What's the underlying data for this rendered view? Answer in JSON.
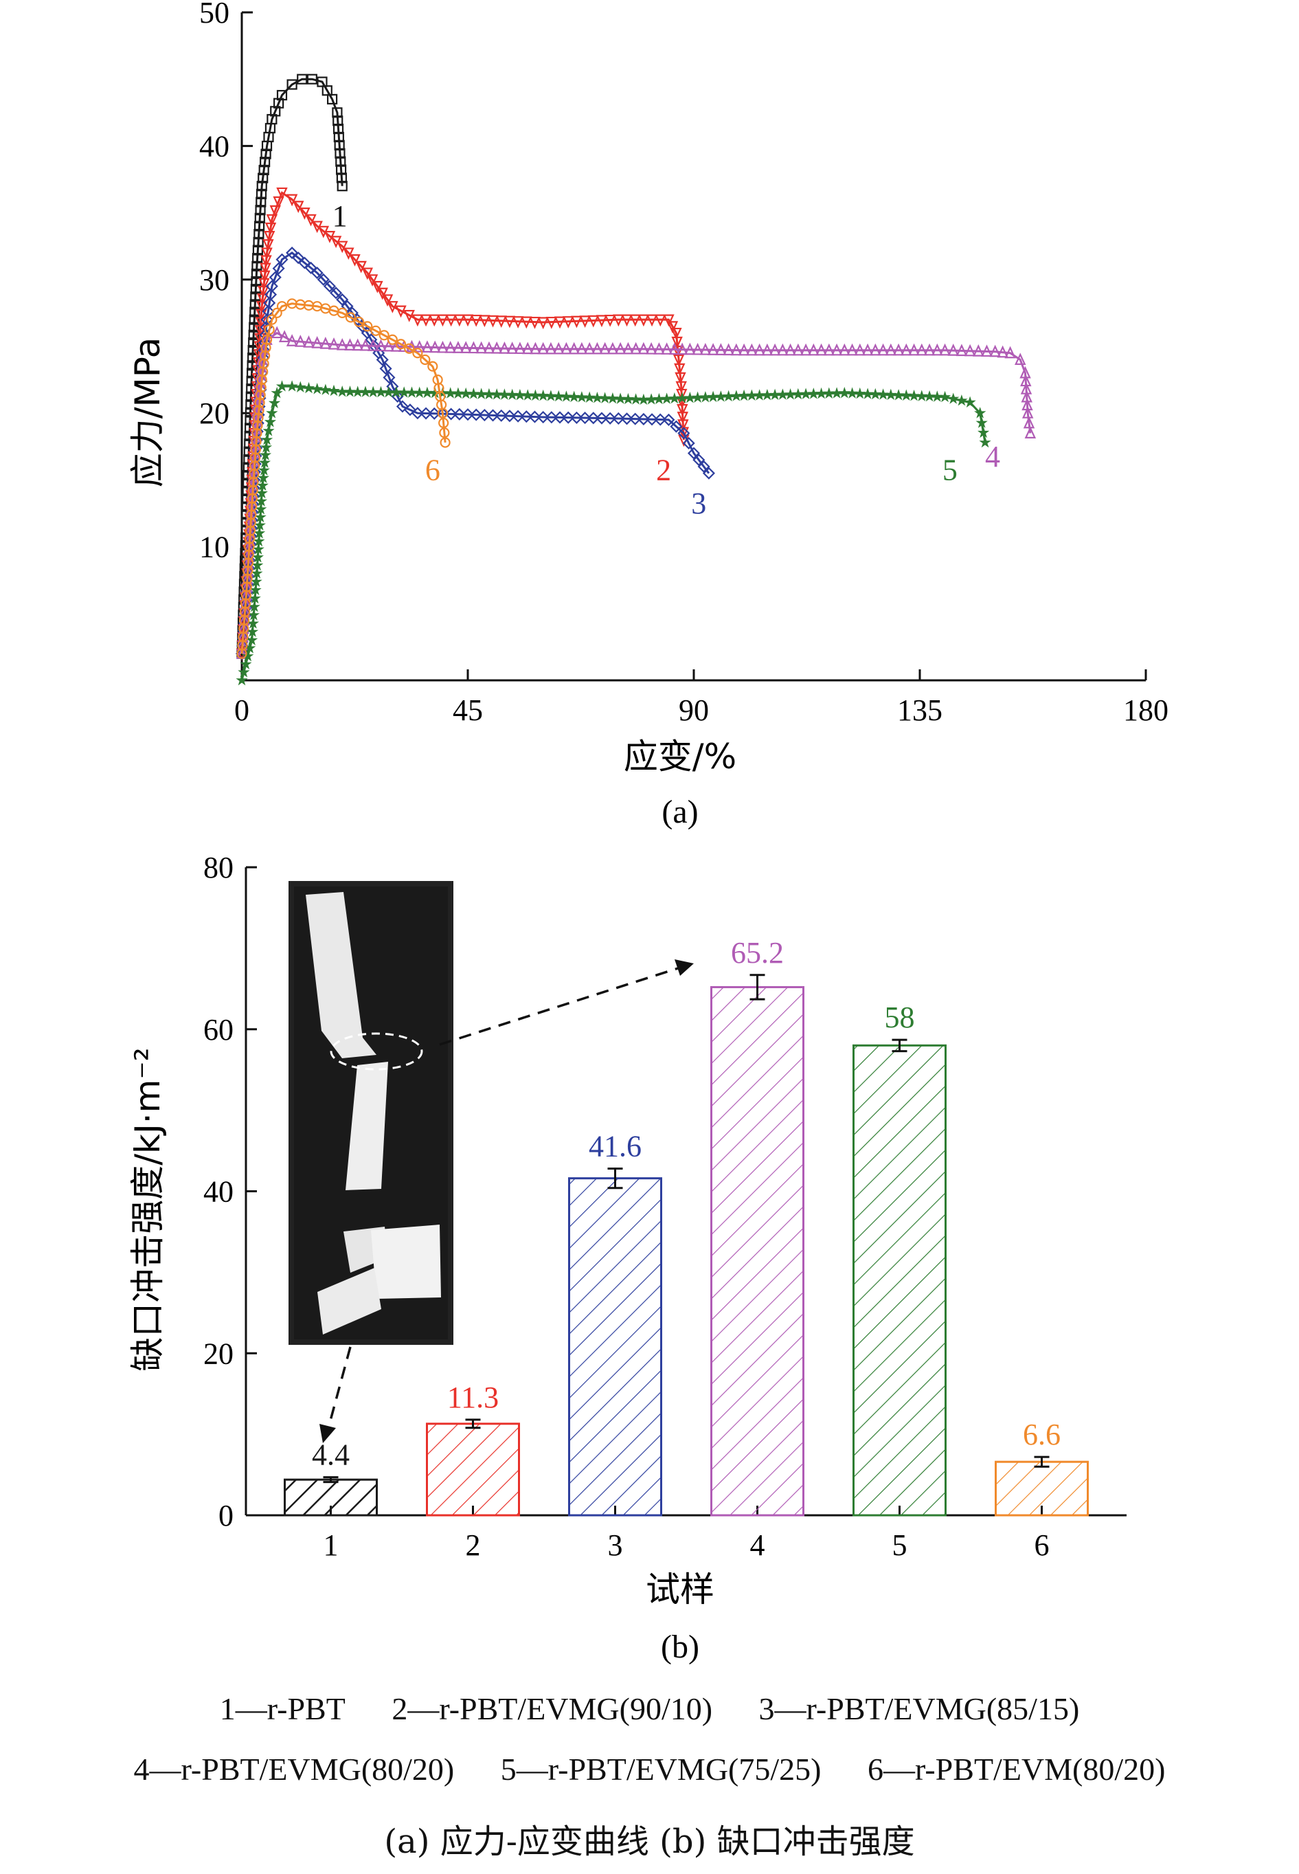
{
  "chart_data": [
    {
      "type": "line",
      "panel_label": "(a)",
      "xlabel": "应变/%",
      "ylabel": "应力/MPa",
      "xlim": [
        0,
        180
      ],
      "ylim": [
        0,
        50
      ],
      "xticks": [
        0,
        45,
        90,
        135,
        180
      ],
      "yticks": [
        10,
        20,
        30,
        40,
        50
      ],
      "series": [
        {
          "name": "1",
          "color": "#1a1a1a",
          "marker": "square",
          "x": [
            0,
            1,
            2,
            3,
            4,
            5,
            6,
            8,
            10,
            12,
            14,
            16,
            18,
            19,
            20
          ],
          "y": [
            2,
            13,
            23,
            31,
            37,
            40,
            42,
            43.8,
            44.6,
            45,
            45,
            44.8,
            43.5,
            42.5,
            37
          ]
        },
        {
          "name": "2",
          "color": "#e8312a",
          "marker": "triangle-down",
          "x": [
            0,
            1,
            2,
            3,
            4,
            5,
            6,
            8,
            10,
            15,
            20,
            25,
            30,
            35,
            45,
            60,
            75,
            85,
            86.5,
            87,
            87.5,
            88
          ],
          "y": [
            2,
            8,
            15,
            22,
            28,
            32,
            34.5,
            36.5,
            36,
            34,
            32.5,
            30.5,
            28,
            27,
            27,
            26.8,
            27,
            27,
            26,
            24,
            22,
            18
          ]
        },
        {
          "name": "3",
          "color": "#2e3f9e",
          "marker": "diamond",
          "x": [
            0,
            1,
            2,
            3,
            4,
            5,
            6,
            8,
            10,
            15,
            20,
            25,
            28,
            30,
            32,
            35,
            45,
            60,
            75,
            85,
            88,
            90,
            92,
            93
          ],
          "y": [
            2,
            6,
            12,
            18,
            23,
            27,
            29.5,
            31.5,
            32,
            30.5,
            28.5,
            26,
            24,
            22,
            20.5,
            20,
            19.9,
            19.7,
            19.6,
            19.5,
            18.5,
            17,
            16,
            15.5
          ]
        },
        {
          "name": "4",
          "color": "#b05cb5",
          "marker": "triangle-up",
          "x": [
            0,
            1,
            2,
            3,
            4,
            5,
            7,
            10,
            20,
            40,
            60,
            80,
            100,
            120,
            140,
            150,
            153,
            155,
            156,
            156.5,
            157
          ],
          "y": [
            2,
            7,
            14,
            20,
            24,
            25.5,
            26,
            25.4,
            25.1,
            24.9,
            24.8,
            24.8,
            24.7,
            24.7,
            24.7,
            24.6,
            24.5,
            24,
            23,
            20,
            18.5
          ]
        },
        {
          "name": "5",
          "color": "#2e7d32",
          "marker": "star",
          "x": [
            0,
            2,
            3,
            4,
            5,
            6,
            7,
            8,
            10,
            20,
            40,
            60,
            80,
            100,
            120,
            140,
            145,
            147,
            148
          ],
          "y": [
            0,
            3,
            8,
            14,
            18,
            20,
            21.5,
            22,
            22,
            21.6,
            21.5,
            21.3,
            21,
            21.3,
            21.5,
            21.2,
            20.8,
            20,
            17.8
          ]
        },
        {
          "name": "6",
          "color": "#f08a2c",
          "marker": "circle",
          "x": [
            0,
            1,
            2,
            3,
            4,
            5,
            6,
            8,
            10,
            15,
            20,
            25,
            30,
            35,
            38,
            39,
            40,
            40.5
          ],
          "y": [
            2,
            7,
            13,
            18.5,
            22.5,
            25.5,
            27,
            28,
            28.2,
            28,
            27.5,
            26.5,
            25.5,
            24.5,
            23.5,
            22.5,
            20,
            17.8
          ]
        }
      ],
      "annotations": [
        {
          "text": "1",
          "x": 19.5,
          "y": 34,
          "color": "#111111"
        },
        {
          "text": "2",
          "x": 84,
          "y": 15,
          "color": "#e8312a"
        },
        {
          "text": "3",
          "x": 91,
          "y": 12.5,
          "color": "#2e3f9e"
        },
        {
          "text": "4",
          "x": 149.5,
          "y": 16,
          "color": "#b05cb5"
        },
        {
          "text": "5",
          "x": 141,
          "y": 15,
          "color": "#2e7d32"
        },
        {
          "text": "6",
          "x": 38,
          "y": 15,
          "color": "#f08a2c"
        }
      ]
    },
    {
      "type": "bar",
      "panel_label": "(b)",
      "xlabel": "试样",
      "ylabel": "缺口冲击强度/kJ·m⁻²",
      "ylim": [
        0,
        80
      ],
      "yticks": [
        0,
        20,
        40,
        60,
        80
      ],
      "categories": [
        "1",
        "2",
        "3",
        "4",
        "5",
        "6"
      ],
      "values": [
        4.4,
        11.3,
        41.6,
        65.2,
        58,
        6.6
      ],
      "errors": [
        0.3,
        0.5,
        1.2,
        1.5,
        0.7,
        0.6
      ],
      "value_labels": [
        "4.4",
        "11.3",
        "41.6",
        "65.2",
        "58",
        "6.6"
      ],
      "colors": [
        "#1a1a1a",
        "#e8312a",
        "#2e3f9e",
        "#b05cb5",
        "#2e7d32",
        "#f08a2c"
      ],
      "fill": "diagonal-hatch"
    }
  ],
  "legend": {
    "line1": [
      "1—r-PBT",
      "2—r-PBT/EVMG(90/10)",
      "3—r-PBT/EVMG(85/15)"
    ],
    "line2": [
      "4—r-PBT/EVMG(80/20)",
      "5—r-PBT/EVMG(75/25)",
      "6—r-PBT/EVM(80/20)"
    ]
  },
  "caption": "(a) 应力-应变曲线 (b) 缺口冲击强度"
}
